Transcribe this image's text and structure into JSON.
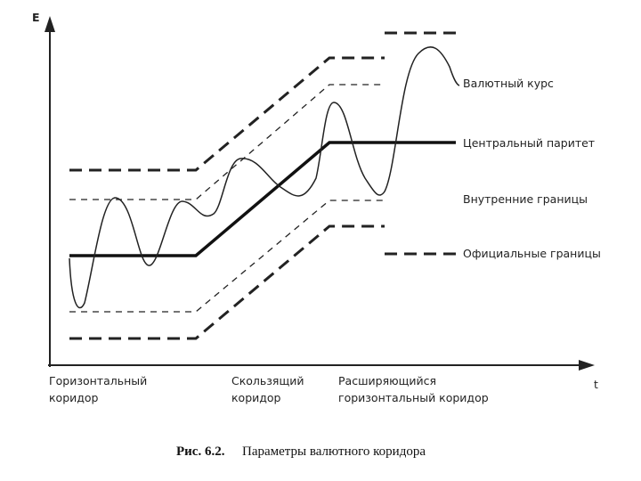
{
  "axes": {
    "y_label": "E",
    "x_label": "t"
  },
  "curve_labels": [
    "Валютный курс",
    "Центральный паритет",
    "Внутренние границы",
    "Официальные границы"
  ],
  "phases": [
    {
      "lines": [
        "Горизонтальный",
        "коридор"
      ]
    },
    {
      "lines": [
        "Скользящий",
        "коридор"
      ]
    },
    {
      "lines": [
        "Расширяющийся",
        "горизонтальный коридор"
      ]
    }
  ],
  "caption": {
    "number": "Рис. 6.2.",
    "text": "Параметры валютного коридора"
  }
}
